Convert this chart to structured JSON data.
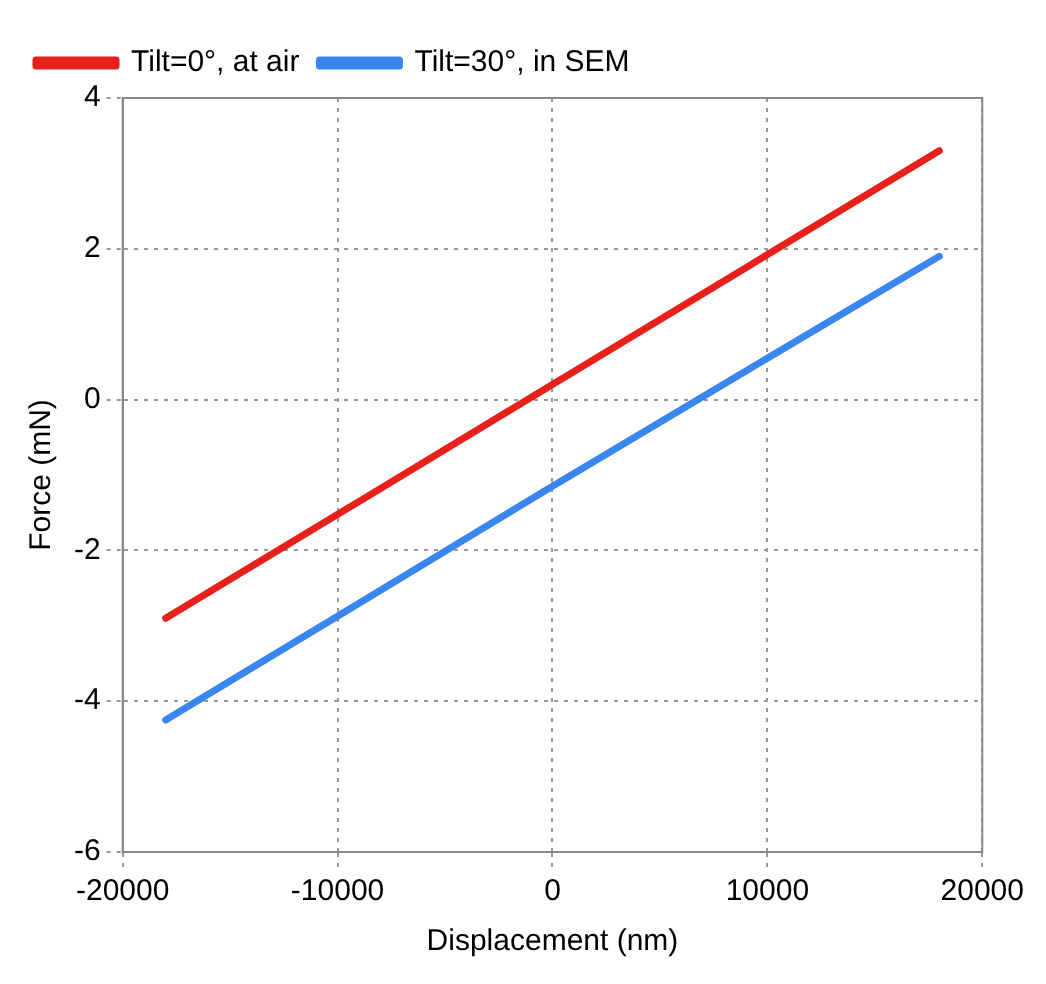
{
  "chart_data": {
    "type": "line",
    "xlabel": "Displacement (nm)",
    "ylabel": "Force (mN)",
    "xlim": [
      -20000,
      20000
    ],
    "xticks": [
      -20000,
      -10000,
      0,
      10000,
      20000
    ],
    "ylim": [
      -6,
      4
    ],
    "yticks": [
      -6,
      -4,
      -2,
      0,
      2,
      4
    ],
    "grid": true,
    "legend": "top left",
    "marker": "none",
    "line_style": "solid",
    "series": [
      {
        "name": "Tilt=0°, at air",
        "color": "#e8201a",
        "x": [
          -18000,
          -9000,
          0,
          9000,
          18000
        ],
        "values": [
          -2.9,
          -1.35,
          0.2,
          1.75,
          3.3
        ]
      },
      {
        "name": "Tilt=30°, in SEM",
        "color": "#3a86f0",
        "x": [
          -18000,
          -9000,
          0,
          9000,
          18000
        ],
        "values": [
          -4.25,
          -2.7,
          -1.15,
          0.38,
          1.9
        ]
      }
    ]
  }
}
